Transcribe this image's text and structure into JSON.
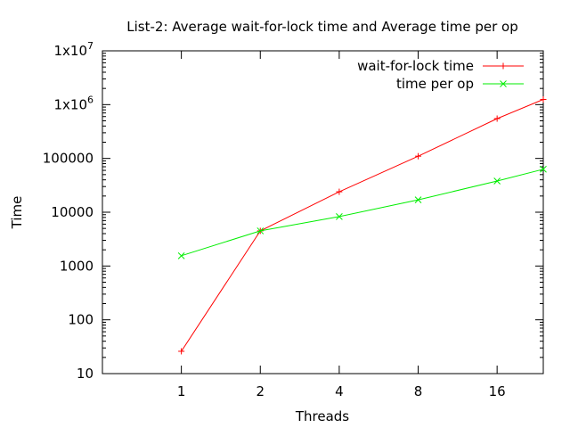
{
  "chart_data": {
    "type": "line",
    "title": "List-2: Average wait-for-lock time and Average time per op",
    "xlabel": "Threads",
    "ylabel": "Time",
    "xscale": "log2",
    "yscale": "log10",
    "xlim": [
      0.5,
      24
    ],
    "ylim": [
      10,
      10000000
    ],
    "x_ticks": [
      1,
      2,
      4,
      8,
      16
    ],
    "y_ticks": [
      {
        "value": 10,
        "label": "10"
      },
      {
        "value": 100,
        "label": "100"
      },
      {
        "value": 1000,
        "label": "1000"
      },
      {
        "value": 10000,
        "label": "10000"
      },
      {
        "value": 100000,
        "label": "100000"
      },
      {
        "value": 1000000,
        "base": "1x10",
        "exp": "6"
      },
      {
        "value": 10000000,
        "base": "1x10",
        "exp": "7"
      }
    ],
    "grid": false,
    "legend_position": "top-right",
    "series": [
      {
        "name": "wait-for-lock time",
        "color": "#ff0000",
        "marker": "plus",
        "x": [
          1,
          2,
          4,
          8,
          16,
          24
        ],
        "y": [
          26,
          4500,
          24000,
          110000,
          550000,
          1250000
        ]
      },
      {
        "name": "time per op",
        "color": "#00ee00",
        "marker": "cross",
        "x": [
          1,
          2,
          4,
          8,
          16,
          24
        ],
        "y": [
          1550,
          4500,
          8300,
          17000,
          38000,
          63000
        ]
      }
    ]
  }
}
